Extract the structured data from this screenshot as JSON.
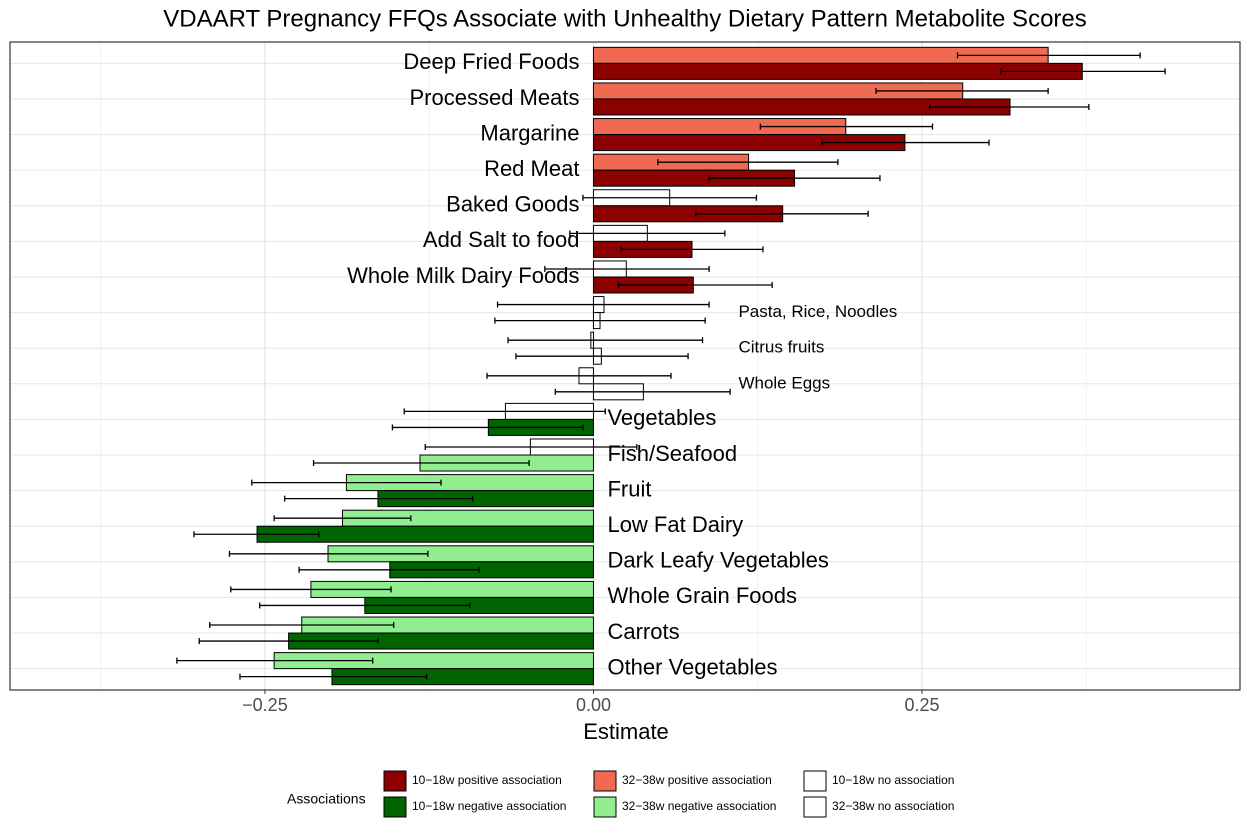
{
  "chart_data": {
    "type": "bar",
    "orientation": "horizontal",
    "title": "VDAART Pregnancy FFQs Associate with Unhealthy Dietary Pattern Metabolite Scores",
    "x_label": "Estimate",
    "categories": [
      "Deep Fried Foods",
      "Processed Meats",
      "Margarine",
      "Red Meat",
      "Baked Goods",
      "Add Salt to food",
      "Whole Milk Dairy Foods",
      "Pasta, Rice, Noodles",
      "Citrus fruits",
      "Whole Eggs",
      "Vegetables",
      "Fish/Seafood",
      "Fruit",
      "Low Fat Dairy",
      "Dark Leafy Vegetables",
      "Whole Grain Foods",
      "Carrots",
      "Other Vegetables"
    ],
    "series": [
      {
        "values": [
          0.346,
          0.281,
          0.192,
          0.118,
          0.058,
          0.041,
          0.025,
          0.008,
          -0.002,
          -0.011,
          -0.067,
          -0.048,
          -0.188,
          -0.191,
          -0.202,
          -0.215,
          -0.222,
          -0.243
        ],
        "lower": [
          0.277,
          0.215,
          0.127,
          0.049,
          -0.008,
          -0.018,
          -0.037,
          -0.073,
          -0.065,
          -0.081,
          -0.144,
          -0.128,
          -0.26,
          -0.243,
          -0.277,
          -0.276,
          -0.292,
          -0.317
        ],
        "upper": [
          0.416,
          0.346,
          0.258,
          0.186,
          0.124,
          0.1,
          0.088,
          0.088,
          0.083,
          0.059,
          0.009,
          0.033,
          -0.116,
          -0.139,
          -0.126,
          -0.154,
          -0.152,
          -0.168
        ],
        "colors": [
          "#ef6a50",
          "#ef6a50",
          "#ef6a50",
          "#ef6a50",
          "#ffffff",
          "#ffffff",
          "#ffffff",
          "#ffffff",
          "#ffffff",
          "#ffffff",
          "#ffffff",
          "#ffffff",
          "#90ee90",
          "#90ee90",
          "#90ee90",
          "#90ee90",
          "#90ee90",
          "#90ee90"
        ]
      },
      {
        "values": [
          0.372,
          0.317,
          0.237,
          0.153,
          0.144,
          0.075,
          0.076,
          0.005,
          0.006,
          0.038,
          -0.08,
          -0.132,
          -0.164,
          -0.256,
          -0.155,
          -0.174,
          -0.232,
          -0.199
        ],
        "lower": [
          0.31,
          0.256,
          0.174,
          0.088,
          0.078,
          0.021,
          0.019,
          -0.075,
          -0.059,
          -0.029,
          -0.153,
          -0.213,
          -0.235,
          -0.304,
          -0.224,
          -0.254,
          -0.3,
          -0.269
        ],
        "upper": [
          0.435,
          0.377,
          0.301,
          0.218,
          0.209,
          0.129,
          0.136,
          0.085,
          0.072,
          0.104,
          -0.008,
          -0.049,
          -0.092,
          -0.209,
          -0.087,
          -0.094,
          -0.164,
          -0.127
        ],
        "colors": [
          "#8b0000",
          "#8b0000",
          "#8b0000",
          "#8b0000",
          "#8b0000",
          "#8b0000",
          "#8b0000",
          "#ffffff",
          "#ffffff",
          "#ffffff",
          "#006400",
          "#90ee90",
          "#006400",
          "#006400",
          "#006400",
          "#006400",
          "#006400",
          "#006400"
        ]
      }
    ],
    "xlim": [
      -0.444,
      0.492
    ],
    "xticks": [
      {
        "value": -0.25,
        "label": "−0.25"
      },
      {
        "value": 0,
        "label": "0.00"
      },
      {
        "value": 0.25,
        "label": "0.25"
      }
    ],
    "grid": true,
    "legend": {
      "title": "Associations",
      "position": "bottom",
      "entries": [
        {
          "label": "10−18w positive association",
          "color": "#8b0000"
        },
        {
          "label": "10−18w negative association",
          "color": "#006400"
        },
        {
          "label": "32−38w positive association",
          "color": "#ef6a50"
        },
        {
          "label": "32−38w negative association",
          "color": "#90ee90"
        },
        {
          "label": "10−18w no association",
          "color": "#ffffff"
        },
        {
          "label": "32−38w no association",
          "color": "#ffffff"
        }
      ]
    }
  }
}
